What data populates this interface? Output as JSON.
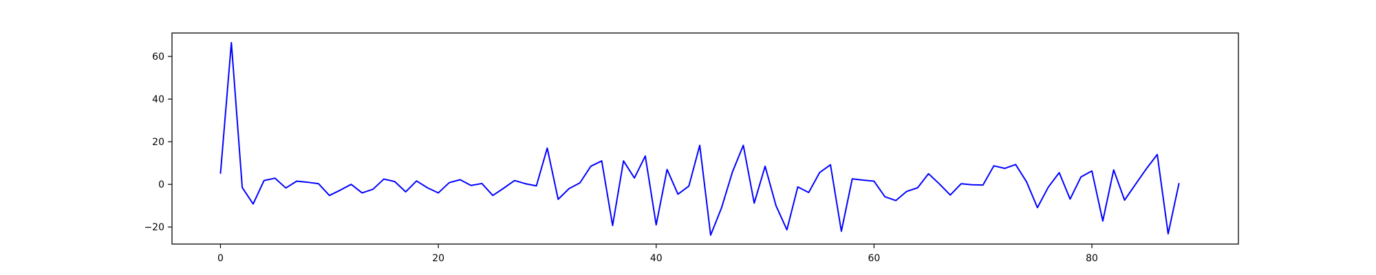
{
  "chart_data": {
    "type": "line",
    "title": "",
    "xlabel": "",
    "ylabel": "",
    "xlim": [
      -4.45,
      93.45
    ],
    "ylim": [
      -28,
      71
    ],
    "xticks": [
      0,
      20,
      40,
      60,
      80
    ],
    "yticks": [
      -20,
      0,
      20,
      40,
      60
    ],
    "xtick_labels": [
      "0",
      "20",
      "40",
      "60",
      "80"
    ],
    "ytick_labels": [
      "−20",
      "0",
      "20",
      "40",
      "60"
    ],
    "grid": false,
    "legend": "none",
    "colors": {
      "line": "#0000ff",
      "axes": "#000000",
      "background": "#ffffff"
    },
    "series": [
      {
        "x": [
          0,
          1,
          2,
          3,
          4,
          5,
          6,
          7,
          8,
          9,
          10,
          11,
          12,
          13,
          14,
          15,
          16,
          17,
          18,
          19,
          20,
          21,
          22,
          23,
          24,
          25,
          26,
          27,
          28,
          29,
          30,
          31,
          32,
          33,
          34,
          35,
          36,
          37,
          38,
          39,
          40,
          41,
          42,
          43,
          44,
          45,
          46,
          47,
          48,
          49,
          50,
          51,
          52,
          53,
          54,
          55,
          56,
          57,
          58,
          59,
          60,
          61,
          62,
          63,
          64,
          65,
          66,
          67,
          68,
          69,
          70,
          71,
          72,
          73,
          74,
          75,
          76,
          77,
          78,
          79,
          80,
          81,
          82,
          83,
          84,
          85,
          86,
          87,
          88
        ],
        "values": [
          5,
          66.5,
          -1.5,
          -9.2,
          1.8,
          2.9,
          -1.7,
          1.5,
          1,
          0.3,
          -5.2,
          -2.7,
          0,
          -4,
          -2.3,
          2.5,
          1.3,
          -3.5,
          1.6,
          -1.6,
          -4,
          0.8,
          2.2,
          -0.5,
          0.4,
          -5.2,
          -1.8,
          1.8,
          0.3,
          -0.7,
          17,
          -7,
          -2,
          0.7,
          8.5,
          11,
          -19.3,
          11,
          3,
          13.3,
          -19,
          7,
          -4.6,
          -0.8,
          18.3,
          -23.8,
          -11,
          5.8,
          18.3,
          -8.8,
          8.5,
          -10,
          -21.3,
          -1.2,
          -3.8,
          5.5,
          9.2,
          -22,
          2.6,
          2,
          1.5,
          -5.8,
          -7.6,
          -3.3,
          -1.6,
          5,
          0.2,
          -5,
          0.3,
          -0.2,
          -0.3,
          8.7,
          7.5,
          9.3,
          1.2,
          -10.9,
          -1.3,
          5.5,
          -6.9,
          3.5,
          6.3,
          -17.2,
          6.8,
          -7.4,
          0,
          7.3,
          14,
          -23.2,
          0.6
        ]
      }
    ]
  }
}
